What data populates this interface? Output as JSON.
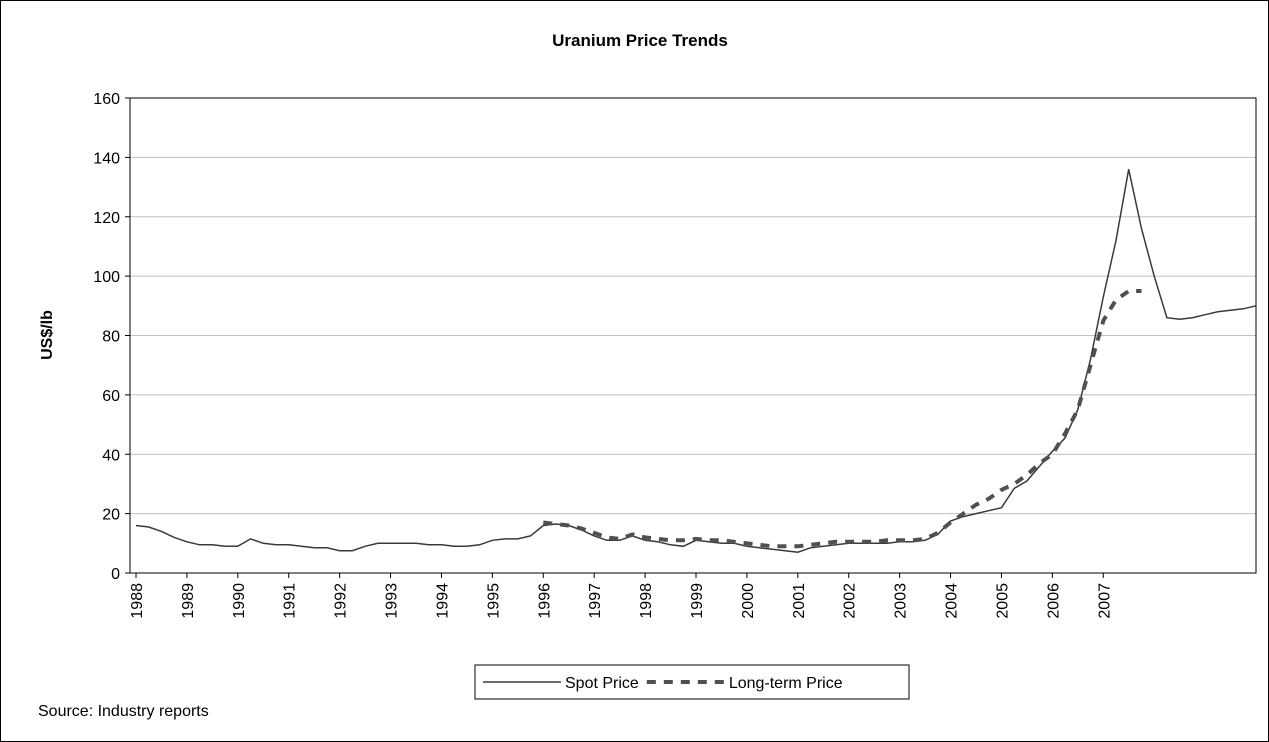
{
  "chart_data": {
    "type": "line",
    "title": "Uranium Price Trends",
    "y_label": "US$/lb",
    "source": "Source: Industry reports",
    "categories": [
      "1988",
      null,
      null,
      null,
      "1989",
      null,
      null,
      null,
      "1990",
      null,
      null,
      null,
      "1991",
      null,
      null,
      null,
      "1992",
      null,
      null,
      null,
      "1993",
      null,
      null,
      null,
      "1994",
      null,
      null,
      null,
      "1995",
      null,
      null,
      null,
      "1996",
      null,
      null,
      null,
      "1997",
      null,
      null,
      null,
      "1998",
      null,
      null,
      null,
      "1999",
      null,
      null,
      null,
      "2000",
      null,
      null,
      null,
      "2001",
      null,
      null,
      null,
      "2002",
      null,
      null,
      null,
      "2003",
      null,
      null,
      null,
      "2004",
      null,
      null,
      null,
      "2005",
      null,
      null,
      null,
      "2006",
      null,
      null,
      null,
      "2007",
      null,
      null,
      null,
      null,
      null,
      null,
      null,
      null,
      null,
      null,
      null,
      null
    ],
    "series": [
      {
        "name": "Spot Price",
        "color": "#3a3a3a",
        "dash": false,
        "values": [
          16,
          15.5,
          14,
          12,
          10.5,
          9.5,
          9.5,
          9,
          9,
          11.5,
          10,
          9.5,
          9.5,
          9,
          8.5,
          8.5,
          7.5,
          7.5,
          9,
          10,
          10,
          10,
          10,
          9.5,
          9.5,
          9,
          9,
          9.5,
          11,
          11.5,
          11.5,
          12.5,
          16,
          16.5,
          16,
          14.5,
          12.5,
          11,
          11,
          12.5,
          11,
          10.5,
          9.5,
          9,
          11,
          10.5,
          10,
          10,
          9,
          8.5,
          8,
          7.5,
          7,
          8.5,
          9,
          9.5,
          10,
          10,
          10,
          10,
          10.5,
          10.5,
          11,
          13,
          17.5,
          19,
          20,
          21,
          22,
          28.5,
          31,
          36,
          41,
          45.5,
          55,
          72,
          93,
          112,
          136,
          116,
          100,
          86,
          85.5,
          86,
          87,
          88,
          88.5,
          89,
          90
        ]
      },
      {
        "name": "Long-term Price",
        "color": "#505050",
        "dash": true,
        "values": [
          null,
          null,
          null,
          null,
          null,
          null,
          null,
          null,
          null,
          null,
          null,
          null,
          null,
          null,
          null,
          null,
          null,
          null,
          null,
          null,
          null,
          null,
          null,
          null,
          null,
          null,
          null,
          null,
          null,
          null,
          null,
          null,
          17,
          16.5,
          16,
          15,
          13.5,
          12,
          11.5,
          13,
          12,
          11.5,
          11,
          11,
          11.5,
          11,
          11,
          10.5,
          10,
          9.5,
          9,
          9,
          9,
          9.5,
          10,
          10.5,
          10.5,
          10.5,
          10.5,
          11,
          11,
          11,
          11.5,
          13.5,
          17,
          20,
          23,
          25,
          28,
          30,
          33,
          37,
          40,
          47,
          55,
          70,
          85,
          92,
          95,
          95,
          null,
          null,
          null,
          null,
          null,
          null,
          null,
          null,
          null
        ]
      }
    ],
    "ylim": [
      0,
      160
    ],
    "yticks": [
      0,
      20,
      40,
      60,
      80,
      100,
      120,
      140,
      160
    ],
    "grid": true,
    "legend": "bottom"
  }
}
